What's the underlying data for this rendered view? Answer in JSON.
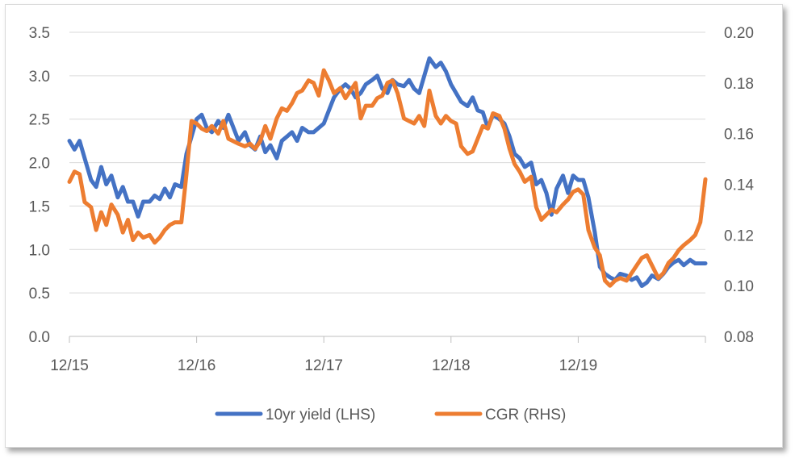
{
  "chart_data": {
    "type": "line",
    "x_tick_labels": [
      "12/15",
      "12/16",
      "12/17",
      "12/18",
      "12/19"
    ],
    "x_range": [
      "12/15",
      "12/20"
    ],
    "y_left": {
      "ticks": [
        "0.0",
        "0.5",
        "1.0",
        "1.5",
        "2.0",
        "2.5",
        "3.0",
        "3.5"
      ],
      "range": [
        0,
        3.5
      ]
    },
    "y_right": {
      "ticks": [
        "0.08",
        "0.10",
        "0.12",
        "0.14",
        "0.16",
        "0.18",
        "0.20"
      ],
      "range": [
        0.08,
        0.2
      ]
    },
    "grid": true,
    "legend_position": "bottom",
    "series": [
      {
        "name": "10yr yield (LHS)",
        "axis": "left",
        "color": "#4472c4",
        "points": [
          [
            0.0,
            2.25
          ],
          [
            0.04,
            2.15
          ],
          [
            0.08,
            2.25
          ],
          [
            0.12,
            2.05
          ],
          [
            0.17,
            1.8
          ],
          [
            0.21,
            1.72
          ],
          [
            0.25,
            1.95
          ],
          [
            0.29,
            1.75
          ],
          [
            0.33,
            1.85
          ],
          [
            0.38,
            1.6
          ],
          [
            0.42,
            1.72
          ],
          [
            0.46,
            1.55
          ],
          [
            0.5,
            1.55
          ],
          [
            0.54,
            1.38
          ],
          [
            0.58,
            1.55
          ],
          [
            0.63,
            1.55
          ],
          [
            0.67,
            1.62
          ],
          [
            0.71,
            1.58
          ],
          [
            0.75,
            1.7
          ],
          [
            0.79,
            1.6
          ],
          [
            0.83,
            1.75
          ],
          [
            0.88,
            1.72
          ],
          [
            0.92,
            2.1
          ],
          [
            0.96,
            2.3
          ],
          [
            1.0,
            2.5
          ],
          [
            1.04,
            2.55
          ],
          [
            1.08,
            2.4
          ],
          [
            1.12,
            2.35
          ],
          [
            1.17,
            2.48
          ],
          [
            1.21,
            2.4
          ],
          [
            1.25,
            2.55
          ],
          [
            1.29,
            2.4
          ],
          [
            1.33,
            2.25
          ],
          [
            1.38,
            2.35
          ],
          [
            1.42,
            2.2
          ],
          [
            1.46,
            2.15
          ],
          [
            1.5,
            2.3
          ],
          [
            1.54,
            2.12
          ],
          [
            1.58,
            2.2
          ],
          [
            1.63,
            2.05
          ],
          [
            1.67,
            2.25
          ],
          [
            1.71,
            2.3
          ],
          [
            1.75,
            2.35
          ],
          [
            1.79,
            2.25
          ],
          [
            1.83,
            2.4
          ],
          [
            1.88,
            2.35
          ],
          [
            1.92,
            2.35
          ],
          [
            1.96,
            2.4
          ],
          [
            2.0,
            2.45
          ],
          [
            2.04,
            2.6
          ],
          [
            2.08,
            2.75
          ],
          [
            2.13,
            2.85
          ],
          [
            2.17,
            2.9
          ],
          [
            2.21,
            2.85
          ],
          [
            2.25,
            2.75
          ],
          [
            2.29,
            2.8
          ],
          [
            2.33,
            2.9
          ],
          [
            2.38,
            2.95
          ],
          [
            2.42,
            3.0
          ],
          [
            2.46,
            2.85
          ],
          [
            2.5,
            2.8
          ],
          [
            2.54,
            2.95
          ],
          [
            2.58,
            2.9
          ],
          [
            2.63,
            2.88
          ],
          [
            2.67,
            2.95
          ],
          [
            2.71,
            2.85
          ],
          [
            2.75,
            2.8
          ],
          [
            2.79,
            3.0
          ],
          [
            2.83,
            3.2
          ],
          [
            2.88,
            3.1
          ],
          [
            2.92,
            3.15
          ],
          [
            2.96,
            3.05
          ],
          [
            3.0,
            2.9
          ],
          [
            3.04,
            2.8
          ],
          [
            3.08,
            2.7
          ],
          [
            3.13,
            2.65
          ],
          [
            3.17,
            2.75
          ],
          [
            3.21,
            2.6
          ],
          [
            3.25,
            2.58
          ],
          [
            3.29,
            2.4
          ],
          [
            3.33,
            2.55
          ],
          [
            3.38,
            2.5
          ],
          [
            3.42,
            2.45
          ],
          [
            3.46,
            2.3
          ],
          [
            3.5,
            2.1
          ],
          [
            3.54,
            2.05
          ],
          [
            3.58,
            1.95
          ],
          [
            3.63,
            2.0
          ],
          [
            3.67,
            1.75
          ],
          [
            3.71,
            1.8
          ],
          [
            3.75,
            1.65
          ],
          [
            3.79,
            1.4
          ],
          [
            3.83,
            1.7
          ],
          [
            3.88,
            1.85
          ],
          [
            3.92,
            1.65
          ],
          [
            3.96,
            1.85
          ],
          [
            4.0,
            1.8
          ],
          [
            4.04,
            1.8
          ],
          [
            4.08,
            1.6
          ],
          [
            4.13,
            1.2
          ],
          [
            4.17,
            0.8
          ],
          [
            4.21,
            0.72
          ],
          [
            4.25,
            0.68
          ],
          [
            4.29,
            0.65
          ],
          [
            4.33,
            0.72
          ],
          [
            4.38,
            0.7
          ],
          [
            4.42,
            0.65
          ],
          [
            4.46,
            0.68
          ],
          [
            4.5,
            0.58
          ],
          [
            4.54,
            0.62
          ],
          [
            4.58,
            0.7
          ],
          [
            4.63,
            0.66
          ],
          [
            4.67,
            0.72
          ],
          [
            4.71,
            0.8
          ],
          [
            4.75,
            0.85
          ],
          [
            4.79,
            0.88
          ],
          [
            4.83,
            0.82
          ],
          [
            4.88,
            0.88
          ],
          [
            4.92,
            0.84
          ],
          [
            4.96,
            0.84
          ],
          [
            5.0,
            0.84
          ]
        ]
      },
      {
        "name": "CGR (RHS)",
        "axis": "right",
        "color": "#ed7d31",
        "points": [
          [
            0.0,
            0.141
          ],
          [
            0.04,
            0.145
          ],
          [
            0.08,
            0.144
          ],
          [
            0.12,
            0.133
          ],
          [
            0.17,
            0.131
          ],
          [
            0.21,
            0.122
          ],
          [
            0.25,
            0.129
          ],
          [
            0.29,
            0.124
          ],
          [
            0.33,
            0.132
          ],
          [
            0.38,
            0.128
          ],
          [
            0.42,
            0.121
          ],
          [
            0.46,
            0.126
          ],
          [
            0.5,
            0.118
          ],
          [
            0.54,
            0.121
          ],
          [
            0.58,
            0.119
          ],
          [
            0.63,
            0.12
          ],
          [
            0.67,
            0.117
          ],
          [
            0.71,
            0.119
          ],
          [
            0.75,
            0.122
          ],
          [
            0.79,
            0.124
          ],
          [
            0.83,
            0.125
          ],
          [
            0.88,
            0.125
          ],
          [
            0.92,
            0.144
          ],
          [
            0.96,
            0.165
          ],
          [
            1.0,
            0.164
          ],
          [
            1.04,
            0.162
          ],
          [
            1.08,
            0.161
          ],
          [
            1.12,
            0.163
          ],
          [
            1.17,
            0.16
          ],
          [
            1.21,
            0.165
          ],
          [
            1.25,
            0.158
          ],
          [
            1.29,
            0.157
          ],
          [
            1.33,
            0.156
          ],
          [
            1.38,
            0.155
          ],
          [
            1.42,
            0.156
          ],
          [
            1.46,
            0.154
          ],
          [
            1.5,
            0.157
          ],
          [
            1.54,
            0.163
          ],
          [
            1.58,
            0.158
          ],
          [
            1.63,
            0.166
          ],
          [
            1.67,
            0.17
          ],
          [
            1.71,
            0.169
          ],
          [
            1.75,
            0.172
          ],
          [
            1.79,
            0.176
          ],
          [
            1.83,
            0.177
          ],
          [
            1.88,
            0.181
          ],
          [
            1.92,
            0.18
          ],
          [
            1.96,
            0.175
          ],
          [
            2.0,
            0.185
          ],
          [
            2.04,
            0.181
          ],
          [
            2.08,
            0.176
          ],
          [
            2.13,
            0.178
          ],
          [
            2.17,
            0.174
          ],
          [
            2.21,
            0.177
          ],
          [
            2.25,
            0.18
          ],
          [
            2.29,
            0.166
          ],
          [
            2.33,
            0.171
          ],
          [
            2.38,
            0.171
          ],
          [
            2.42,
            0.174
          ],
          [
            2.46,
            0.175
          ],
          [
            2.5,
            0.18
          ],
          [
            2.54,
            0.181
          ],
          [
            2.58,
            0.176
          ],
          [
            2.63,
            0.166
          ],
          [
            2.67,
            0.165
          ],
          [
            2.71,
            0.164
          ],
          [
            2.75,
            0.167
          ],
          [
            2.79,
            0.163
          ],
          [
            2.83,
            0.177
          ],
          [
            2.88,
            0.167
          ],
          [
            2.92,
            0.164
          ],
          [
            2.96,
            0.167
          ],
          [
            3.0,
            0.165
          ],
          [
            3.04,
            0.164
          ],
          [
            3.08,
            0.155
          ],
          [
            3.13,
            0.152
          ],
          [
            3.17,
            0.153
          ],
          [
            3.21,
            0.158
          ],
          [
            3.25,
            0.163
          ],
          [
            3.29,
            0.162
          ],
          [
            3.33,
            0.168
          ],
          [
            3.38,
            0.167
          ],
          [
            3.42,
            0.162
          ],
          [
            3.46,
            0.154
          ],
          [
            3.5,
            0.148
          ],
          [
            3.54,
            0.145
          ],
          [
            3.58,
            0.141
          ],
          [
            3.63,
            0.143
          ],
          [
            3.67,
            0.131
          ],
          [
            3.71,
            0.126
          ],
          [
            3.75,
            0.128
          ],
          [
            3.79,
            0.13
          ],
          [
            3.83,
            0.129
          ],
          [
            3.88,
            0.132
          ],
          [
            3.92,
            0.134
          ],
          [
            3.96,
            0.137
          ],
          [
            4.0,
            0.138
          ],
          [
            4.04,
            0.136
          ],
          [
            4.08,
            0.122
          ],
          [
            4.13,
            0.115
          ],
          [
            4.17,
            0.112
          ],
          [
            4.21,
            0.102
          ],
          [
            4.25,
            0.1
          ],
          [
            4.29,
            0.102
          ],
          [
            4.33,
            0.103
          ],
          [
            4.38,
            0.102
          ],
          [
            4.42,
            0.105
          ],
          [
            4.46,
            0.108
          ],
          [
            4.5,
            0.111
          ],
          [
            4.54,
            0.112
          ],
          [
            4.58,
            0.108
          ],
          [
            4.63,
            0.103
          ],
          [
            4.67,
            0.105
          ],
          [
            4.71,
            0.109
          ],
          [
            4.75,
            0.111
          ],
          [
            4.79,
            0.114
          ],
          [
            4.83,
            0.116
          ],
          [
            4.88,
            0.118
          ],
          [
            4.92,
            0.12
          ],
          [
            4.96,
            0.125
          ],
          [
            5.0,
            0.142
          ]
        ]
      }
    ]
  }
}
